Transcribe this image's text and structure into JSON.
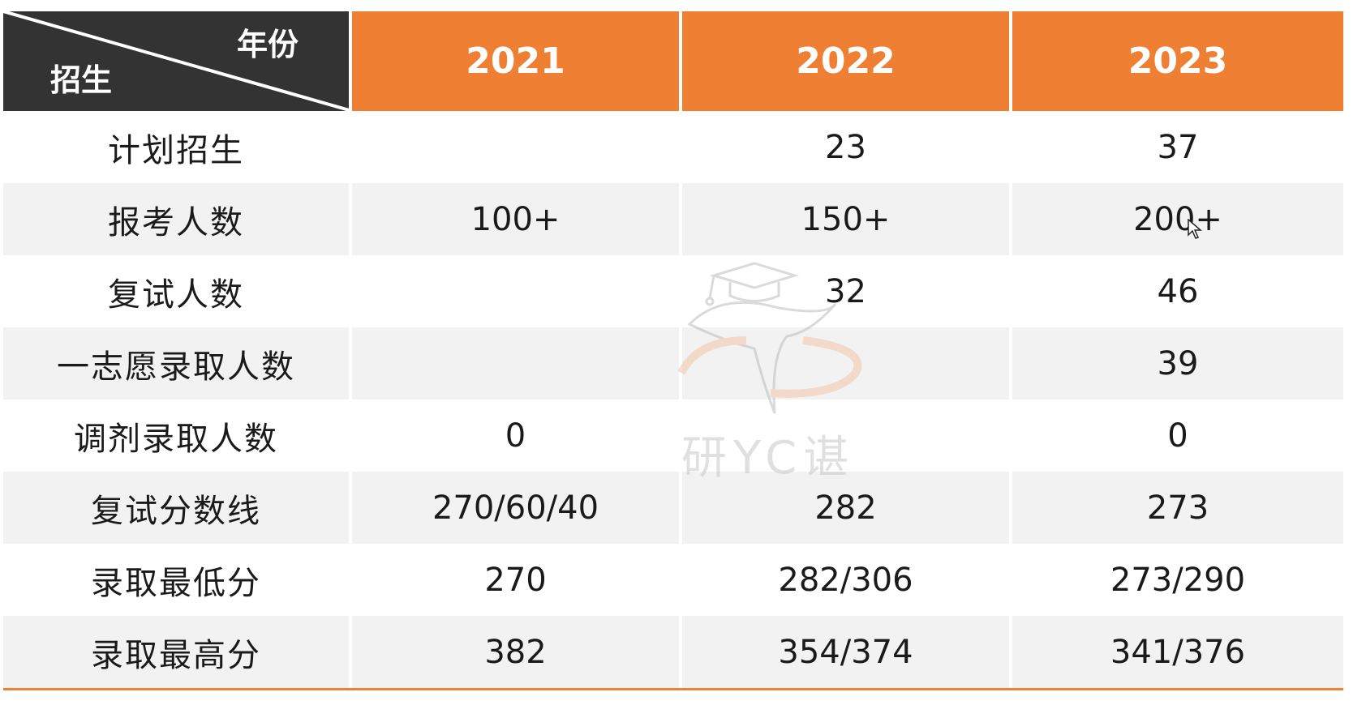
{
  "table": {
    "corner": {
      "year_label": "年份",
      "enroll_label": "招生"
    },
    "years": [
      "2021",
      "2022",
      "2023"
    ],
    "rows": [
      {
        "label": "计划招生",
        "values": [
          "",
          "23",
          "37"
        ]
      },
      {
        "label": "报考人数",
        "values": [
          "100+",
          "150+",
          "200+"
        ]
      },
      {
        "label": "复试人数",
        "values": [
          "",
          "32",
          "46"
        ]
      },
      {
        "label": "一志愿录取人数",
        "values": [
          "",
          "",
          "39"
        ]
      },
      {
        "label": "调剂录取人数",
        "values": [
          "0",
          "",
          "0"
        ]
      },
      {
        "label": "复试分数线",
        "values": [
          "270/60/40",
          "282",
          "273"
        ]
      },
      {
        "label": "录取最低分",
        "values": [
          "270",
          "282/306",
          "273/290"
        ]
      },
      {
        "label": "录取最高分",
        "values": [
          "382",
          "354/374",
          "341/376"
        ]
      }
    ]
  },
  "watermark": {
    "text": "研YC谌"
  },
  "colors": {
    "header": "#ee7f33",
    "corner": "#333333",
    "shade": "#f2f2f2"
  }
}
